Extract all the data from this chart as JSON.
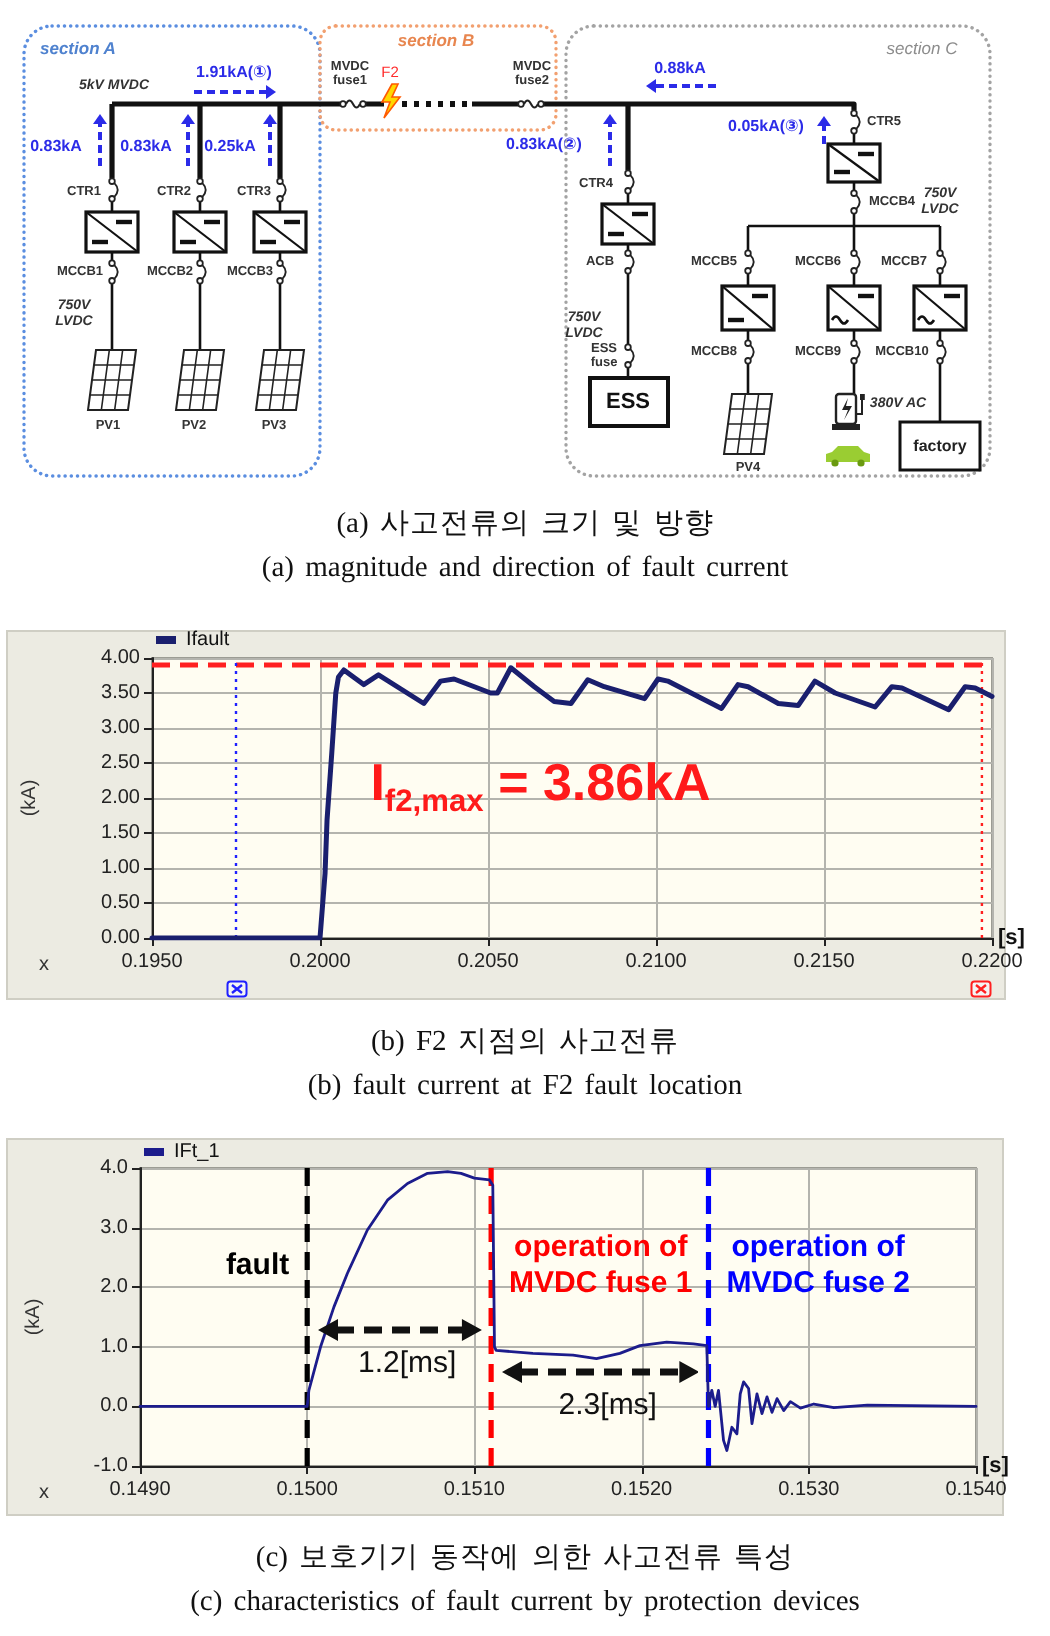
{
  "chart_data": [
    {
      "type": "other",
      "title": "(a) 사고전류의 크기 및 방향",
      "subtitle": "(a) magnitude and direction of fault current",
      "annotations": [
        "section A",
        "section B",
        "section C",
        "5kV MVDC",
        "1.91kA(①)",
        "0.83kA",
        "0.83kA",
        "0.25kA",
        "CTR1",
        "CTR2",
        "CTR3",
        "MCCB1",
        "MCCB2",
        "MCCB3",
        "750V LVDC",
        "PV1",
        "PV2",
        "PV3",
        "MVDC fuse1",
        "F2",
        "MVDC fuse2",
        "0.83kA(②)",
        "0.88kA",
        "0.05kA(③)",
        "CTR4",
        "ACB",
        "750V LVDC",
        "ESS fuse",
        "ESS",
        "CTR5",
        "MCCB4",
        "750V LVDC",
        "MCCB5",
        "MCCB6",
        "MCCB7",
        "MCCB8",
        "MCCB9",
        "MCCB10",
        "PV4",
        "380V AC",
        "factory"
      ]
    },
    {
      "type": "line",
      "title": "(b) F2 지점의 사고전류",
      "subtitle": "(b) fault current at F2 fault location",
      "xlabel": "[s]",
      "ylabel": "(kA)",
      "x": [
        0.195,
        0.2,
        0.20015,
        0.20021,
        0.20035,
        0.20047,
        0.20055,
        0.20071,
        0.2013,
        0.20174,
        0.20309,
        0.20359,
        0.20399,
        0.20508,
        0.20528,
        0.20568,
        0.20638,
        0.20697,
        0.20747,
        0.20797,
        0.20846,
        0.20966,
        0.21006,
        0.21035,
        0.21195,
        0.21244,
        0.21274,
        0.21364,
        0.21423,
        0.21473,
        0.21533,
        0.21652,
        0.21702,
        0.21732,
        0.21871,
        0.2192,
        0.2195,
        0.22
      ],
      "series": [
        {
          "name": "Ifault",
          "color": "#1a1f6e",
          "values": [
            0,
            0,
            0.92,
            1.69,
            2.64,
            3.5,
            3.73,
            3.83,
            3.62,
            3.76,
            3.35,
            3.67,
            3.7,
            3.5,
            3.5,
            3.86,
            3.59,
            3.38,
            3.35,
            3.69,
            3.59,
            3.42,
            3.7,
            3.67,
            3.28,
            3.62,
            3.59,
            3.35,
            3.32,
            3.67,
            3.5,
            3.3,
            3.59,
            3.57,
            3.26,
            3.59,
            3.57,
            3.45
          ]
        }
      ],
      "xlim": [
        0.195,
        0.22
      ],
      "xticks": [
        {
          "value": 0.195,
          "label": "0.1950"
        },
        {
          "value": 0.2,
          "label": "0.2000"
        },
        {
          "value": 0.205,
          "label": "0.2050"
        },
        {
          "value": 0.21,
          "label": "0.2100"
        },
        {
          "value": 0.215,
          "label": "0.2150"
        },
        {
          "value": 0.22,
          "label": "0.2200"
        }
      ],
      "ylim": [
        0,
        4
      ],
      "yticks": [
        {
          "value": 0,
          "label": "0.00"
        },
        {
          "value": 0.5,
          "label": "0.50"
        },
        {
          "value": 1,
          "label": "1.00"
        },
        {
          "value": 1.5,
          "label": "1.50"
        },
        {
          "value": 2,
          "label": "2.00"
        },
        {
          "value": 2.5,
          "label": "2.50"
        },
        {
          "value": 3,
          "label": "3.00"
        },
        {
          "value": 3.5,
          "label": "3.50"
        },
        {
          "value": 4,
          "label": "4.00"
        }
      ],
      "grid": true,
      "legend": "top left",
      "marker": "none",
      "ref_lines": [
        {
          "axis": "y",
          "value": 3.9,
          "color": "#ff2020",
          "line_style": "dashed"
        },
        {
          "axis": "x",
          "value": 0.1975,
          "color": "#2020ff",
          "line_style": "dotted"
        },
        {
          "axis": "x",
          "value": 0.2197,
          "color": "#ff2020",
          "line_style": "dotted"
        }
      ],
      "annotations": [
        "I$_{f2,max}$ = 3.86kA",
        "x"
      ]
    },
    {
      "type": "line",
      "title": "(c) 보호기기 동작에 의한 사고전류 특성",
      "subtitle": "(c) characteristics of fault current by protection devices",
      "xlabel": "[s]",
      "ylabel": "(kA)",
      "x": [
        0.149,
        0.15,
        0.15001,
        0.15008,
        0.15016,
        0.15024,
        0.15036,
        0.15048,
        0.1506,
        0.15072,
        0.15084,
        0.15092,
        0.151,
        0.15109,
        0.15111,
        0.15112,
        0.15113,
        0.15135,
        0.15159,
        0.15173,
        0.15187,
        0.15199,
        0.15215,
        0.15231,
        0.15239,
        0.1524,
        0.15242,
        0.15244,
        0.15246,
        0.15249,
        0.15251,
        0.15254,
        0.15257,
        0.15259,
        0.15261,
        0.15264,
        0.15266,
        0.15269,
        0.15272,
        0.15275,
        0.15278,
        0.15281,
        0.15285,
        0.15289,
        0.15295,
        0.15303,
        0.15315,
        0.15335,
        0.154
      ],
      "series": [
        {
          "name": "IFt_1",
          "color": "#1c1c8c",
          "values": [
            0,
            0,
            0.27,
            1.0,
            1.67,
            2.23,
            2.96,
            3.46,
            3.74,
            3.91,
            3.94,
            3.91,
            3.83,
            3.8,
            3.71,
            1.0,
            0.94,
            0.89,
            0.86,
            0.8,
            0.89,
            1.02,
            1.08,
            1.05,
            1.02,
            0,
            0.27,
            0,
            0.27,
            -0.57,
            -0.74,
            -0.35,
            -0.46,
            0.21,
            0.41,
            0.3,
            -0.29,
            0.21,
            -0.12,
            0.16,
            -0.1,
            0.13,
            -0.07,
            0.08,
            -0.03,
            0.04,
            -0.02,
            0.02,
            0
          ]
        }
      ],
      "xlim": [
        0.149,
        0.154
      ],
      "xticks": [
        {
          "value": 0.149,
          "label": "0.1490"
        },
        {
          "value": 0.15,
          "label": "0.1500"
        },
        {
          "value": 0.151,
          "label": "0.1510"
        },
        {
          "value": 0.152,
          "label": "0.1520"
        },
        {
          "value": 0.153,
          "label": "0.1530"
        },
        {
          "value": 0.154,
          "label": "0.1540"
        }
      ],
      "ylim": [
        -1,
        4
      ],
      "yticks": [
        {
          "value": -1,
          "label": "-1.0"
        },
        {
          "value": 0,
          "label": "0.0"
        },
        {
          "value": 1,
          "label": "1.0"
        },
        {
          "value": 2,
          "label": "2.0"
        },
        {
          "value": 3,
          "label": "3.0"
        },
        {
          "value": 4,
          "label": "4.0"
        }
      ],
      "grid": true,
      "legend": "top left",
      "marker": "none",
      "ref_lines": [
        {
          "axis": "x",
          "value": 0.15,
          "label": "fault",
          "color": "#000000",
          "line_style": "dashed"
        },
        {
          "axis": "x",
          "value": 0.1511,
          "label": "operation of MVDC fuse 1",
          "color": "#ff0000",
          "line_style": "dashed"
        },
        {
          "axis": "x",
          "value": 0.1524,
          "label": "operation of MVDC fuse 2",
          "color": "#0000ff",
          "line_style": "dashed"
        }
      ],
      "annotations": [
        "1.2[ms]",
        "2.3[ms]",
        "x"
      ]
    }
  ]
}
